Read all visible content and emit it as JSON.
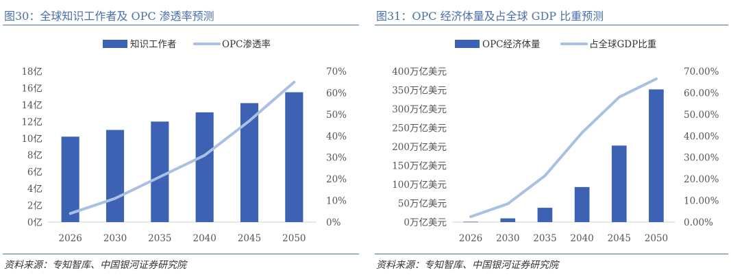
{
  "chart_data": [
    {
      "type": "bar",
      "title": "图30：全球知识工作者及 OPC 渗透率预测",
      "source": "资料来源：专知智库、中国银河证券研究院",
      "categories": [
        "2026",
        "2030",
        "2035",
        "2040",
        "2045",
        "2050"
      ],
      "series": [
        {
          "name": "知识工作者",
          "type": "bar",
          "axis": "left",
          "color": "#3d62b3",
          "values": [
            10.2,
            11.0,
            12.0,
            13.1,
            14.2,
            15.5
          ]
        },
        {
          "name": "OPC渗透率",
          "type": "line",
          "axis": "right",
          "color": "#a9bfe4",
          "values": [
            4,
            11,
            21,
            31,
            47,
            65
          ]
        }
      ],
      "ylim_left": [
        0,
        18
      ],
      "yticks_left": [
        0,
        2,
        4,
        6,
        8,
        10,
        12,
        14,
        16,
        18
      ],
      "ytick_labels_left": [
        "0亿",
        "2亿",
        "4亿",
        "6亿",
        "8亿",
        "10亿",
        "12亿",
        "14亿",
        "16亿",
        "18亿"
      ],
      "ylim_right": [
        0,
        70
      ],
      "yticks_right": [
        0,
        10,
        20,
        30,
        40,
        50,
        60,
        70
      ],
      "ytick_labels_right": [
        "0%",
        "10%",
        "20%",
        "30%",
        "40%",
        "50%",
        "60%",
        "70%"
      ],
      "legend": "top-center",
      "grid": false
    },
    {
      "type": "bar",
      "title": "图31：OPC 经济体量及占全球 GDP 比重预测",
      "source": "资料来源：专知智库、中国银河证券研究院",
      "categories": [
        "2026",
        "2030",
        "2035",
        "2040",
        "2045",
        "2050"
      ],
      "series": [
        {
          "name": "OPC经济体量",
          "type": "bar",
          "axis": "left",
          "color": "#3d62b3",
          "values": [
            1,
            10,
            38,
            93,
            203,
            352
          ]
        },
        {
          "name": "占全球GDP比重",
          "type": "line",
          "axis": "right",
          "color": "#a9bfe4",
          "values": [
            2.5,
            8.5,
            21.5,
            41.5,
            58,
            66.5
          ]
        }
      ],
      "ylim_left": [
        0,
        400
      ],
      "yticks_left": [
        0,
        50,
        100,
        150,
        200,
        250,
        300,
        350,
        400
      ],
      "ytick_labels_left": [
        "0万亿美元",
        "50万亿美元",
        "100万亿美元",
        "150万亿美元",
        "200万亿美元",
        "250万亿美元",
        "300万亿美元",
        "350万亿美元",
        "400万亿美元"
      ],
      "ylim_right": [
        0,
        70
      ],
      "yticks_right": [
        0,
        10,
        20,
        30,
        40,
        50,
        60,
        70
      ],
      "ytick_labels_right": [
        "0.00%",
        "10.00%",
        "20.00%",
        "30.00%",
        "40.00%",
        "50.00%",
        "60.00%",
        "70.00%"
      ],
      "legend": "top-center",
      "grid": false
    }
  ]
}
